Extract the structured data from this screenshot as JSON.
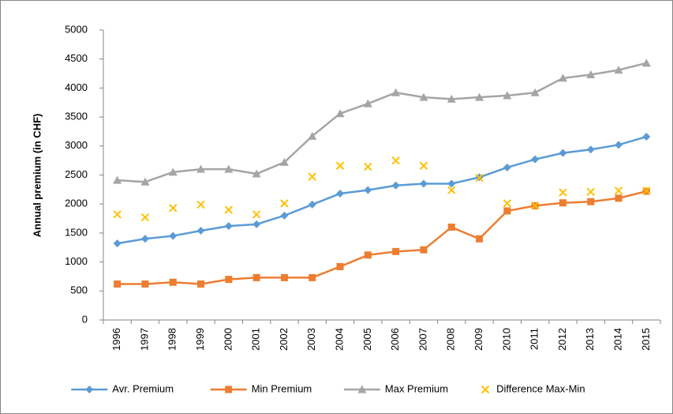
{
  "chart_data": {
    "type": "line",
    "y_label": "Annual premium (in CHF)",
    "categories": [
      "1996",
      "1997",
      "1998",
      "1999",
      "2000",
      "2001",
      "2002",
      "2003",
      "2004",
      "2005",
      "2006",
      "2007",
      "2008",
      "2009",
      "2010",
      "2011",
      "2012",
      "2013",
      "2014",
      "2015"
    ],
    "series": [
      {
        "name": "Avr. Premium",
        "color": "#5b9bd5",
        "marker": "diamond",
        "line": true,
        "values": [
          1320,
          1400,
          1450,
          1540,
          1620,
          1650,
          1800,
          1990,
          2180,
          2240,
          2320,
          2350,
          2350,
          2460,
          2630,
          2770,
          2880,
          2940,
          3020,
          3160
        ]
      },
      {
        "name": "Min Premium",
        "color": "#ed7d31",
        "marker": "square",
        "line": true,
        "values": [
          620,
          620,
          650,
          620,
          700,
          730,
          730,
          730,
          920,
          1120,
          1180,
          1210,
          1600,
          1400,
          1880,
          1970,
          2020,
          2040,
          2100,
          2220
        ]
      },
      {
        "name": "Max Premium",
        "color": "#a5a5a5",
        "marker": "triangle",
        "line": true,
        "values": [
          2410,
          2380,
          2550,
          2600,
          2600,
          2520,
          2720,
          3170,
          3560,
          3730,
          3920,
          3840,
          3810,
          3840,
          3870,
          3920,
          4170,
          4230,
          4310,
          4430
        ]
      },
      {
        "name": "Difference Max-Min",
        "color": "#ffc000",
        "marker": "x",
        "line": false,
        "values": [
          1820,
          1770,
          1930,
          1990,
          1900,
          1820,
          2010,
          2470,
          2660,
          2640,
          2750,
          2660,
          2240,
          2450,
          2010,
          1970,
          2200,
          2210,
          2230,
          2230
        ]
      }
    ],
    "ylim": [
      0,
      5000
    ],
    "yticks": [
      0,
      500,
      1000,
      1500,
      2000,
      2500,
      3000,
      3500,
      4000,
      4500,
      5000
    ],
    "grid": false,
    "legend": "bottom"
  }
}
